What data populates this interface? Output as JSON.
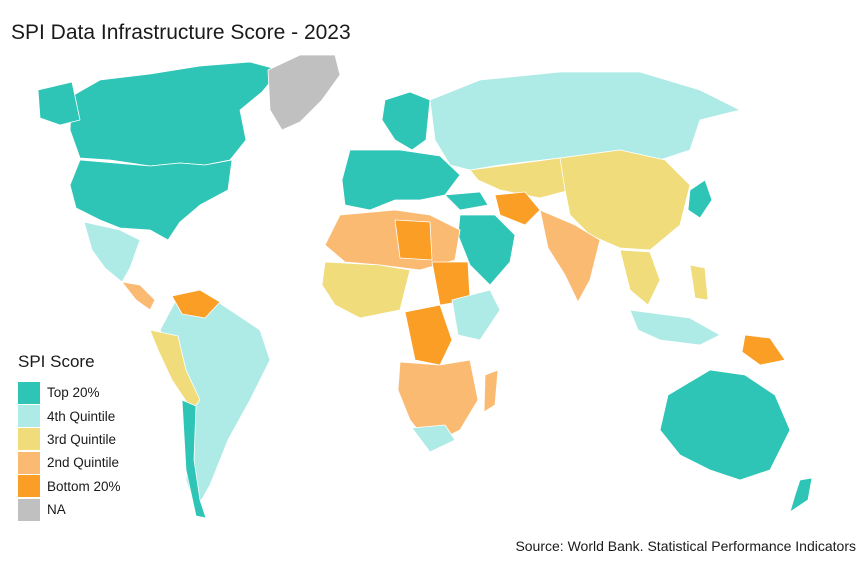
{
  "title": "SPI Data Infrastructure Score - 2023",
  "legend": {
    "title": "SPI Score",
    "items": [
      {
        "label": "Top 20%",
        "color": "#2ec4b6"
      },
      {
        "label": "4th Quintile",
        "color": "#aeeae6"
      },
      {
        "label": "3rd Quintile",
        "color": "#f0dc7a"
      },
      {
        "label": "2nd Quintile",
        "color": "#fbba72"
      },
      {
        "label": "Bottom 20%",
        "color": "#fa9e26"
      },
      {
        "label": "NA",
        "color": "#c0c0c0"
      }
    ]
  },
  "source": "Source: World Bank. Statistical Performance Indicators"
}
